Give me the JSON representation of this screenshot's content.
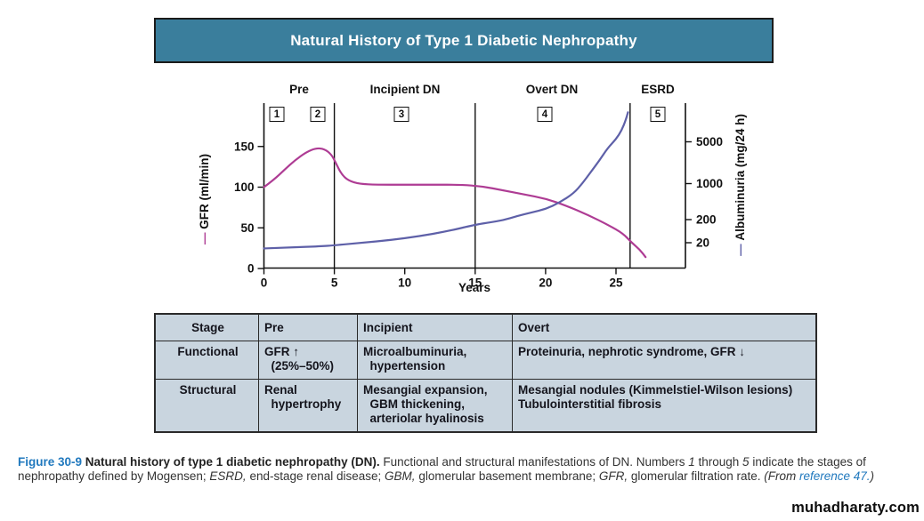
{
  "title": "Natural History of Type 1 Diabetic Nephropathy",
  "colors": {
    "title_bar_bg": "#3A7E9C",
    "table_bg": "#C9D5DF",
    "gfr_curve": "#AE3C94",
    "albuminuria_curve": "#5E60A8",
    "caption_blue": "#2179BE"
  },
  "chart_data": {
    "type": "line",
    "xlabel": "Years",
    "x_ticks": [
      0,
      5,
      10,
      15,
      20,
      25
    ],
    "x_range": [
      0,
      29.9
    ],
    "left_axis": {
      "label": "GFR (ml/min)",
      "unit": "ml/min",
      "ticks": [
        0,
        50,
        100,
        150
      ],
      "range": [
        0,
        165
      ]
    },
    "right_axis": {
      "label": "Albuminuria (mg/24 h)",
      "unit": "mg/24 h",
      "ticks": [
        20,
        200,
        1000,
        5000
      ],
      "scale": "log"
    },
    "stage_labels": [
      "Pre",
      "Incipient DN",
      "Overt DN",
      "ESRD"
    ],
    "stage_label_centers_years": [
      2.5,
      10,
      20.5,
      28
    ],
    "stage_numbers": [
      "1",
      "2",
      "3",
      "4",
      "5"
    ],
    "stage_number_centers_years": [
      0.9,
      3.8,
      9.8,
      20,
      28
    ],
    "dividers_years": [
      5,
      15,
      26
    ],
    "series": [
      {
        "name": "GFR",
        "axis": "left",
        "color": "#AE3C94",
        "points": [
          [
            0,
            100
          ],
          [
            0.7,
            109
          ],
          [
            1.5,
            122
          ],
          [
            2.2,
            133
          ],
          [
            3,
            143
          ],
          [
            3.7,
            148
          ],
          [
            4.3,
            147
          ],
          [
            4.8,
            140
          ],
          [
            5.1,
            130
          ],
          [
            5.5,
            116
          ],
          [
            6,
            108
          ],
          [
            6.8,
            104
          ],
          [
            8,
            103
          ],
          [
            10,
            103
          ],
          [
            12,
            103
          ],
          [
            14,
            103
          ],
          [
            15.5,
            101
          ],
          [
            17,
            96
          ],
          [
            18.5,
            91
          ],
          [
            20,
            86
          ],
          [
            21.5,
            77
          ],
          [
            23,
            66
          ],
          [
            24.5,
            53
          ],
          [
            25.5,
            43
          ],
          [
            26.1,
            32
          ],
          [
            26.7,
            23
          ],
          [
            27.1,
            14
          ]
        ]
      },
      {
        "name": "Albuminuria",
        "axis": "right",
        "color": "#5E60A8",
        "points": [
          [
            0,
            14
          ],
          [
            2,
            15
          ],
          [
            4,
            16
          ],
          [
            5,
            17
          ],
          [
            7,
            20
          ],
          [
            9,
            26
          ],
          [
            11,
            38
          ],
          [
            13,
            62
          ],
          [
            15,
            120
          ],
          [
            16,
            150
          ],
          [
            17,
            190
          ],
          [
            18,
            235
          ],
          [
            19,
            275
          ],
          [
            20,
            320
          ],
          [
            21,
            430
          ],
          [
            22,
            650
          ],
          [
            22.6,
            1000
          ],
          [
            23.2,
            1550
          ],
          [
            23.8,
            2400
          ],
          [
            24.4,
            3900
          ],
          [
            25,
            5600
          ],
          [
            25.4,
            8200
          ],
          [
            25.7,
            13000
          ],
          [
            25.85,
            18000
          ]
        ]
      }
    ]
  },
  "table": {
    "header": [
      "Stage",
      "Pre",
      "Incipient",
      "Overt"
    ],
    "rows": [
      {
        "label": "Functional",
        "pre": "GFR ↑\n  (25%–50%)",
        "incipient": "Microalbuminuria,\n  hypertension",
        "overt": "Proteinuria, nephrotic syndrome, GFR ↓"
      },
      {
        "label": "Structural",
        "pre": "Renal\n  hypertrophy",
        "incipient": "Mesangial expansion,\n  GBM thickening,\n  arteriolar hyalinosis",
        "overt": "Mesangial nodules (Kimmelstiel-Wilson lesions)\nTubulointerstitial fibrosis"
      }
    ]
  },
  "caption": {
    "fig_label": "Figure 30-9",
    "bold_title": " Natural history of type 1 diabetic nephropathy (DN).",
    "t1": " Functional and structural manifestations of DN. Numbers ",
    "i1": "1",
    "t2": " through ",
    "i2": "5",
    "t3": " indicate the stages of nephropathy defined by Mogensen; ",
    "i3": "ESRD,",
    "t4": " end-stage renal disease; ",
    "i4": "GBM,",
    "t5": " glomerular basement membrane; ",
    "i5": "GFR,",
    "t6": " glomerular filtration rate. ",
    "i6": "(From ",
    "ref_link": "reference 47.",
    "t7": ")"
  },
  "watermark": "muhadharaty.com"
}
